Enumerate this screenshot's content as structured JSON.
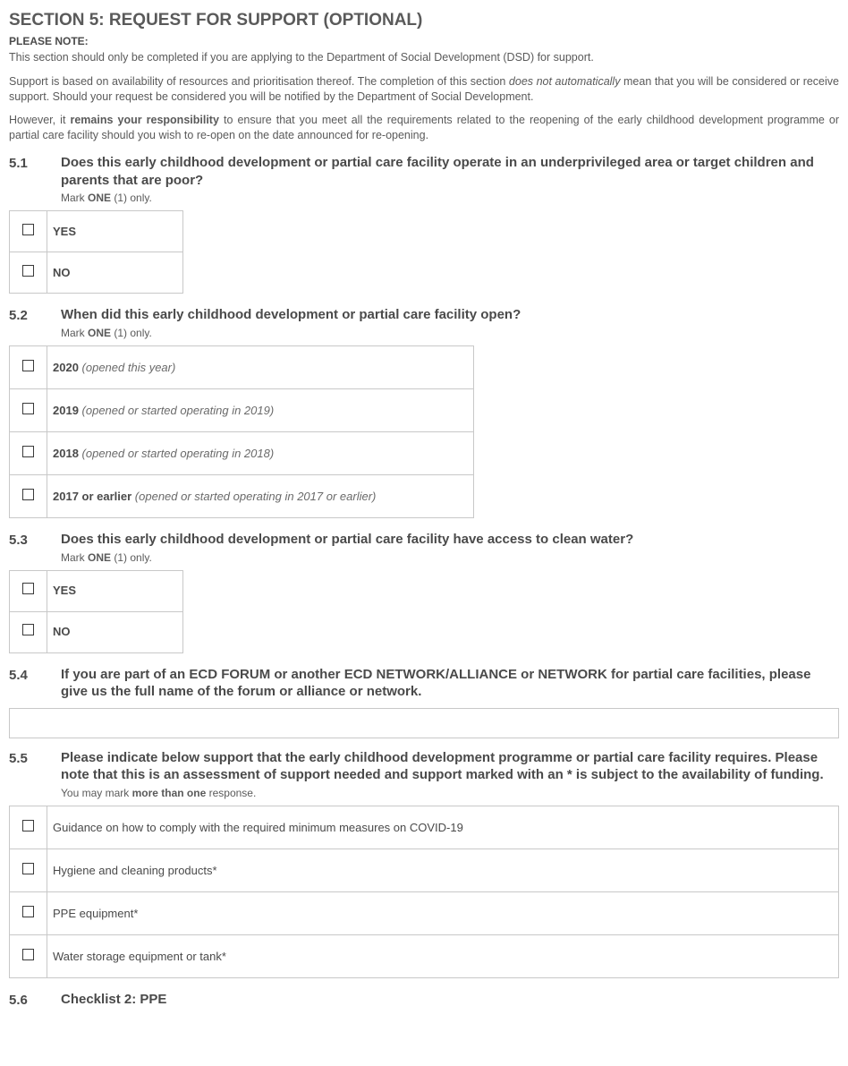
{
  "section": {
    "title": "SECTION 5: REQUEST FOR SUPPORT (OPTIONAL)",
    "please_note_label": "PLEASE NOTE:",
    "para1": "This section should only be completed if you are applying to the Department of Social Development (DSD) for support.",
    "para2_a": "Support is based on availability of resources and prioritisation thereof. The completion of this section ",
    "para2_em": "does not automatically",
    "para2_b": " mean that you will be considered or receive support. Should your request be considered you will be notified by the Department of Social Development.",
    "para3_a": "However, it ",
    "para3_bold": "remains your responsibility",
    "para3_b": " to ensure that you meet all the requirements related to the reopening of the early childhood development programme or partial care facility should you wish to re-open on the date announced for re-opening."
  },
  "q51": {
    "num": "5.1",
    "text": "Does this early childhood development or partial care facility operate in an underprivileged area or target children and parents that are poor?",
    "sub_a": "Mark ",
    "sub_bold": "ONE",
    "sub_b": " (1) only.",
    "opt_yes": "YES",
    "opt_no": "NO"
  },
  "q52": {
    "num": "5.2",
    "text": "When did this early childhood development or partial care facility open?",
    "sub_a": "Mark ",
    "sub_bold": "ONE",
    "sub_b": " (1) only.",
    "r1_bold": "2020",
    "r1_it": " (opened this year)",
    "r2_bold": "2019",
    "r2_it": " (opened or started operating in 2019)",
    "r3_bold": "2018",
    "r3_it": " (opened or started operating in 2018)",
    "r4_bold": "2017 or earlier",
    "r4_it": " (opened or started operating in 2017 or earlier)"
  },
  "q53": {
    "num": "5.3",
    "text": "Does this early childhood development or partial care facility have access to clean water?",
    "sub_a": "Mark ",
    "sub_bold": "ONE",
    "sub_b": " (1) only.",
    "opt_yes": "YES",
    "opt_no": "NO"
  },
  "q54": {
    "num": "5.4",
    "text": "If you are part of an ECD FORUM or another ECD NETWORK/ALLIANCE or NETWORK for partial care facilities, please give us the full name of the forum or alliance or network."
  },
  "q55": {
    "num": "5.5",
    "text": "Please indicate below support that the early childhood development programme or partial care facility requires. Please note that this is an assessment of support needed and support marked with an * is subject to the availability of funding.",
    "sub_a": "You may mark ",
    "sub_bold": "more than one",
    "sub_b": " response.",
    "opt1": "Guidance on how to comply with the required minimum measures on COVID-19",
    "opt2": "Hygiene and cleaning products*",
    "opt3": "PPE equipment*",
    "opt4": "Water storage equipment or tank*"
  },
  "q56": {
    "num": "5.6",
    "text": "Checklist 2: PPE"
  }
}
